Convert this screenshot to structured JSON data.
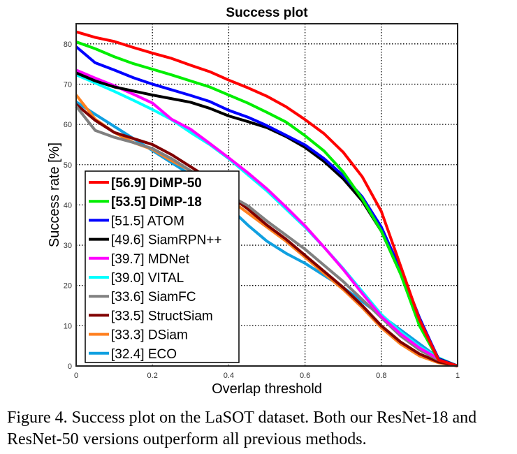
{
  "chart_data": {
    "type": "line",
    "title": "Success plot",
    "xlabel": "Overlap threshold",
    "ylabel": "Success rate [%]",
    "xlim": [
      0,
      1
    ],
    "ylim": [
      0,
      85
    ],
    "xticks": [
      "0",
      "0.2",
      "0.4",
      "0.6",
      "0.8",
      "1"
    ],
    "yticks": [
      "0",
      "10",
      "20",
      "30",
      "40",
      "50",
      "60",
      "70",
      "80"
    ],
    "grid": true,
    "legend_position": "bottom-left",
    "x": [
      0,
      0.05,
      0.1,
      0.15,
      0.2,
      0.25,
      0.3,
      0.35,
      0.4,
      0.45,
      0.5,
      0.55,
      0.6,
      0.65,
      0.7,
      0.75,
      0.8,
      0.85,
      0.9,
      0.95,
      1
    ],
    "series": [
      {
        "name": "[56.9] DiMP-50",
        "bold": true,
        "color": "#ff0000",
        "values": [
          83.0,
          81.6,
          80.6,
          79.1,
          77.7,
          76.4,
          74.7,
          73.1,
          71.0,
          69.1,
          67.0,
          64.4,
          61.2,
          57.7,
          53.1,
          47.0,
          38.4,
          25.0,
          11.5,
          1.5,
          0
        ]
      },
      {
        "name": "[53.5] DiMP-18",
        "bold": true,
        "color": "#00ee00",
        "values": [
          80.5,
          78.8,
          76.8,
          75.1,
          73.7,
          72.3,
          70.8,
          69.3,
          67.3,
          65.3,
          63.0,
          60.6,
          57.2,
          53.4,
          48.2,
          41.5,
          33.5,
          23.0,
          10.0,
          1.5,
          0
        ]
      },
      {
        "name": "[51.5] ATOM",
        "bold": false,
        "color": "#0000ff",
        "values": [
          79.3,
          75.3,
          73.5,
          71.6,
          70.0,
          68.6,
          67.2,
          65.7,
          63.5,
          61.8,
          59.7,
          57.3,
          54.9,
          51.5,
          47.3,
          42.0,
          34.5,
          24.0,
          12.0,
          1.7,
          0
        ]
      },
      {
        "name": "[49.6] SiamRPN++",
        "bold": false,
        "color": "#000000",
        "values": [
          72.8,
          70.8,
          69.3,
          68.3,
          67.3,
          66.4,
          65.5,
          64.0,
          62.1,
          60.7,
          59.2,
          57.0,
          54.3,
          50.8,
          46.5,
          41.0,
          33.5,
          23.0,
          11.5,
          1.8,
          0
        ]
      },
      {
        "name": "[39.7] MDNet",
        "bold": false,
        "color": "#ff00ff",
        "values": [
          73.5,
          71.5,
          69.6,
          67.5,
          65.3,
          61.3,
          58.8,
          55.3,
          51.7,
          48.0,
          44.0,
          39.5,
          34.8,
          29.5,
          24.0,
          18.0,
          12.3,
          8.0,
          4.5,
          1.8,
          0
        ]
      },
      {
        "name": "[39.0] VITAL",
        "bold": false,
        "color": "#00ffff",
        "values": [
          72.3,
          70.3,
          68.2,
          66.0,
          63.7,
          61.2,
          58.0,
          55.0,
          51.5,
          47.5,
          43.5,
          39.0,
          34.5,
          29.5,
          24.2,
          18.5,
          12.8,
          8.5,
          4.8,
          2.0,
          0
        ]
      },
      {
        "name": "[33.6] SiamFC",
        "bold": false,
        "color": "#808080",
        "values": [
          64.5,
          58.5,
          56.8,
          55.5,
          54.0,
          51.5,
          48.5,
          45.5,
          42.5,
          39.8,
          36.0,
          32.5,
          29.0,
          25.0,
          21.0,
          16.5,
          12.0,
          7.5,
          4.0,
          1.5,
          0
        ]
      },
      {
        "name": "[33.5] StructSiam",
        "bold": false,
        "color": "#800000",
        "values": [
          65.0,
          61.0,
          58.0,
          56.5,
          55.0,
          52.5,
          49.5,
          46.5,
          42.5,
          39.0,
          35.0,
          31.5,
          27.5,
          23.5,
          19.5,
          15.0,
          10.0,
          6.0,
          3.0,
          1.0,
          0
        ]
      },
      {
        "name": "[33.3] DSiam",
        "bold": false,
        "color": "#ff8020",
        "values": [
          67.3,
          61.3,
          58.0,
          55.5,
          53.8,
          51.0,
          48.5,
          45.5,
          41.5,
          38.0,
          34.5,
          31.0,
          27.0,
          23.0,
          19.0,
          14.5,
          9.5,
          5.5,
          2.5,
          0.8,
          0
        ]
      },
      {
        "name": "[32.4] ECO",
        "bold": false,
        "color": "#10a0e0",
        "values": [
          65.6,
          62.5,
          59.5,
          56.5,
          53.5,
          50.5,
          47.5,
          44.0,
          39.5,
          35.0,
          31.0,
          28.0,
          25.5,
          22.5,
          19.5,
          16.0,
          12.5,
          9.0,
          5.5,
          2.0,
          0
        ]
      }
    ]
  },
  "caption": "Figure 4. Success plot on the LaSOT dataset. Both our ResNet-18 and ResNet-50 versions outperform all previous methods."
}
